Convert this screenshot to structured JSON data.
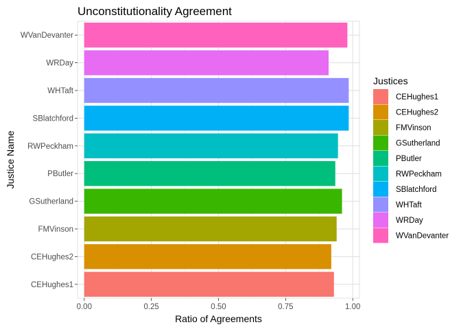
{
  "chart_data": {
    "type": "bar",
    "orientation": "horizontal",
    "title": "Unconstitutionality Agreement",
    "xlabel": "Ratio of Agreements",
    "ylabel": "Justice Name",
    "xlim": [
      -0.025,
      1.025
    ],
    "x_ticks": [
      "0.00",
      "0.25",
      "0.50",
      "0.75",
      "1.00"
    ],
    "x_tick_values": [
      0,
      0.25,
      0.5,
      0.75,
      1.0
    ],
    "grid": true,
    "legend": {
      "title": "Justices",
      "placement": "right"
    },
    "categories": [
      "CEHughes1",
      "CEHughes2",
      "FMVinson",
      "GSutherland",
      "PButler",
      "RWPeckham",
      "SBlatchford",
      "WHTaft",
      "WRDay",
      "WVanDevanter"
    ],
    "values": [
      0.93,
      0.92,
      0.94,
      0.96,
      0.935,
      0.945,
      0.985,
      0.985,
      0.91,
      0.98
    ],
    "colors": [
      "#F8766D",
      "#D89000",
      "#A3A500",
      "#39B600",
      "#00BF7D",
      "#00BFC4",
      "#00B0F6",
      "#9590FF",
      "#E76BF3",
      "#FF62BC"
    ]
  }
}
